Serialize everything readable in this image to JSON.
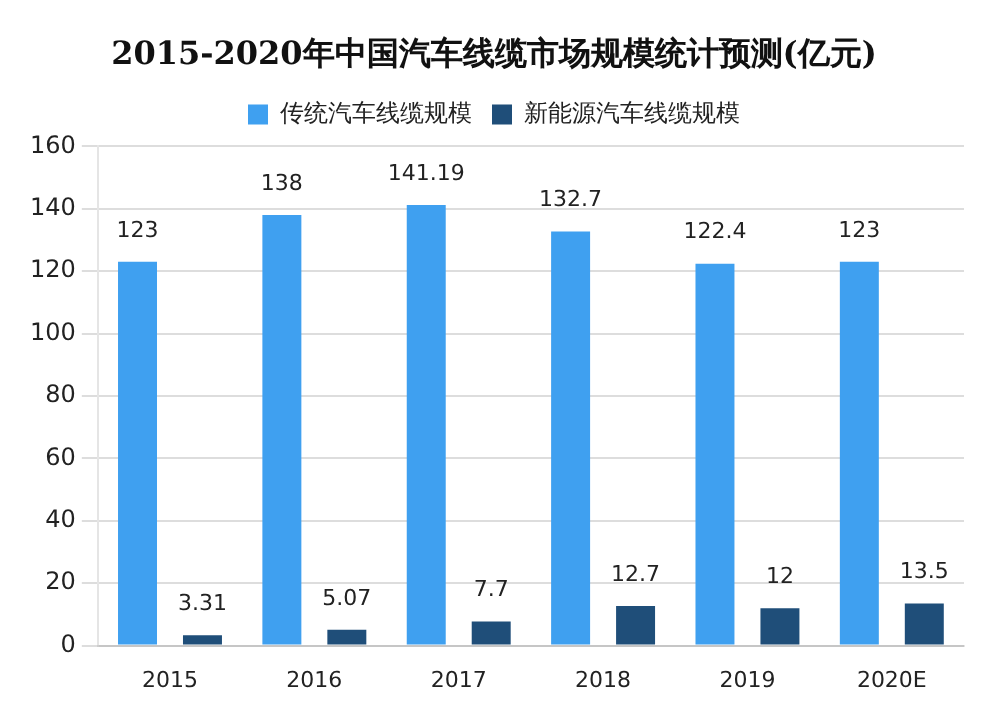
{
  "chart_data": {
    "type": "bar",
    "title": "2015-2020年中国汽车线缆市场规模统计预测(亿元)",
    "categories": [
      "2015",
      "2016",
      "2017",
      "2018",
      "2019",
      "2020E"
    ],
    "series": [
      {
        "name": "传统汽车线缆规模",
        "color": "#3fa0f0",
        "values": [
          123,
          138,
          141.19,
          132.7,
          122.4,
          123
        ]
      },
      {
        "name": "新能源汽车线缆规模",
        "color": "#1f4e79",
        "values": [
          3.31,
          5.07,
          7.7,
          12.7,
          12,
          13.5
        ]
      }
    ],
    "ylim": [
      0,
      160
    ],
    "yticks": [
      0,
      20,
      40,
      60,
      80,
      100,
      120,
      140,
      160
    ],
    "grid": "y",
    "legend": "top",
    "data_labels": true
  }
}
